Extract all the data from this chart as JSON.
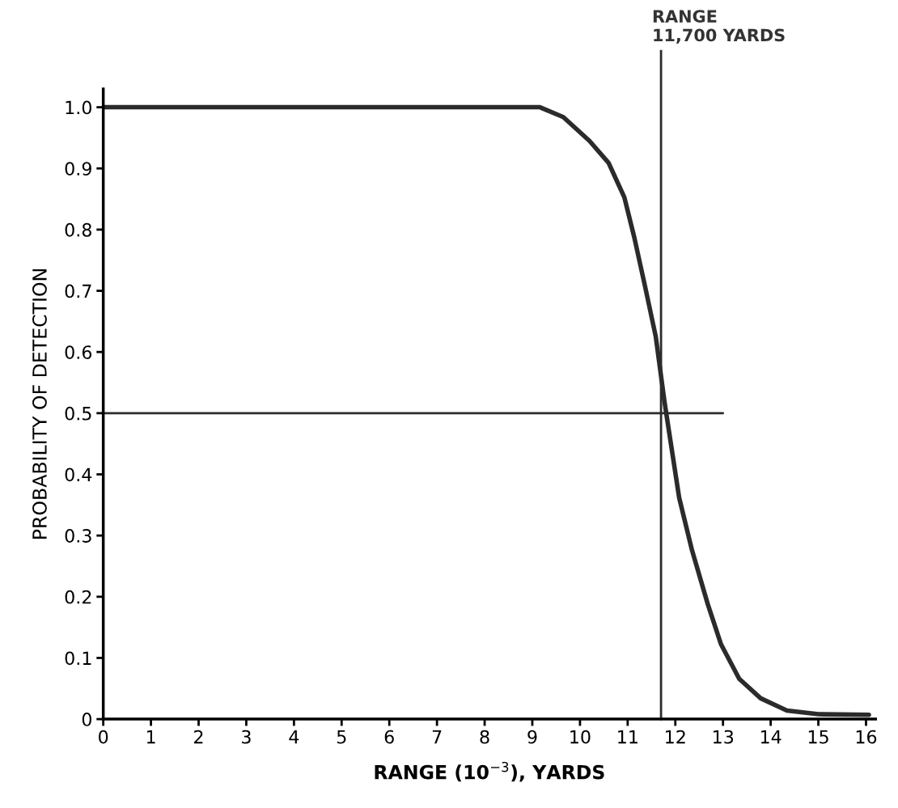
{
  "chart_data": {
    "type": "line",
    "xlabel": "RANGE (10$^{−3}$), YARDS",
    "ylabel": "PROBABILITY OF DETECTION",
    "series": [
      {
        "color": "#2b2b2b",
        "x": [
          0,
          9.16,
          9.65,
          10.2,
          10.6,
          10.93,
          11.14,
          11.36,
          11.59,
          11.77,
          12.08,
          12.35,
          12.68,
          12.96,
          13.34,
          13.79,
          14.34,
          15.0,
          16.06
        ],
        "values": [
          1.0,
          1.0,
          0.984,
          0.945,
          0.909,
          0.853,
          0.787,
          0.709,
          0.625,
          0.52,
          0.362,
          0.276,
          0.188,
          0.122,
          0.066,
          0.034,
          0.014,
          0.008,
          0.007
        ]
      },
      {
        "color": "#2b2b2b",
        "x": [
          0,
          13
        ],
        "values": [
          0.5,
          0.5
        ]
      }
    ],
    "ref_lines": [
      {
        "axis": "x",
        "value": 11.7,
        "label": "RANGE\n11,700 YARDS",
        "color": "#2b2b2b"
      }
    ],
    "xlim": [
      0,
      16.2
    ],
    "ylim": [
      0,
      1.03
    ],
    "xticks": [
      0,
      1,
      2,
      3,
      4,
      5,
      6,
      7,
      8,
      9,
      10,
      11,
      12,
      13,
      14,
      15,
      16
    ],
    "yticks": [
      0,
      {
        "value": 0.1,
        "label": "0.1"
      },
      {
        "value": 0.2,
        "label": "0.2"
      },
      {
        "value": 0.3,
        "label": "0.3"
      },
      {
        "value": 0.4,
        "label": "0.4"
      },
      {
        "value": 0.5,
        "label": "0.5"
      },
      {
        "value": 0.6,
        "label": "0.6"
      },
      {
        "value": 0.7,
        "label": "0.7"
      },
      {
        "value": 0.8,
        "label": "0.8"
      },
      {
        "value": 0.9,
        "label": "0.9"
      },
      {
        "value": 1,
        "label": "1.0"
      }
    ],
    "grid": false,
    "legend": false
  }
}
